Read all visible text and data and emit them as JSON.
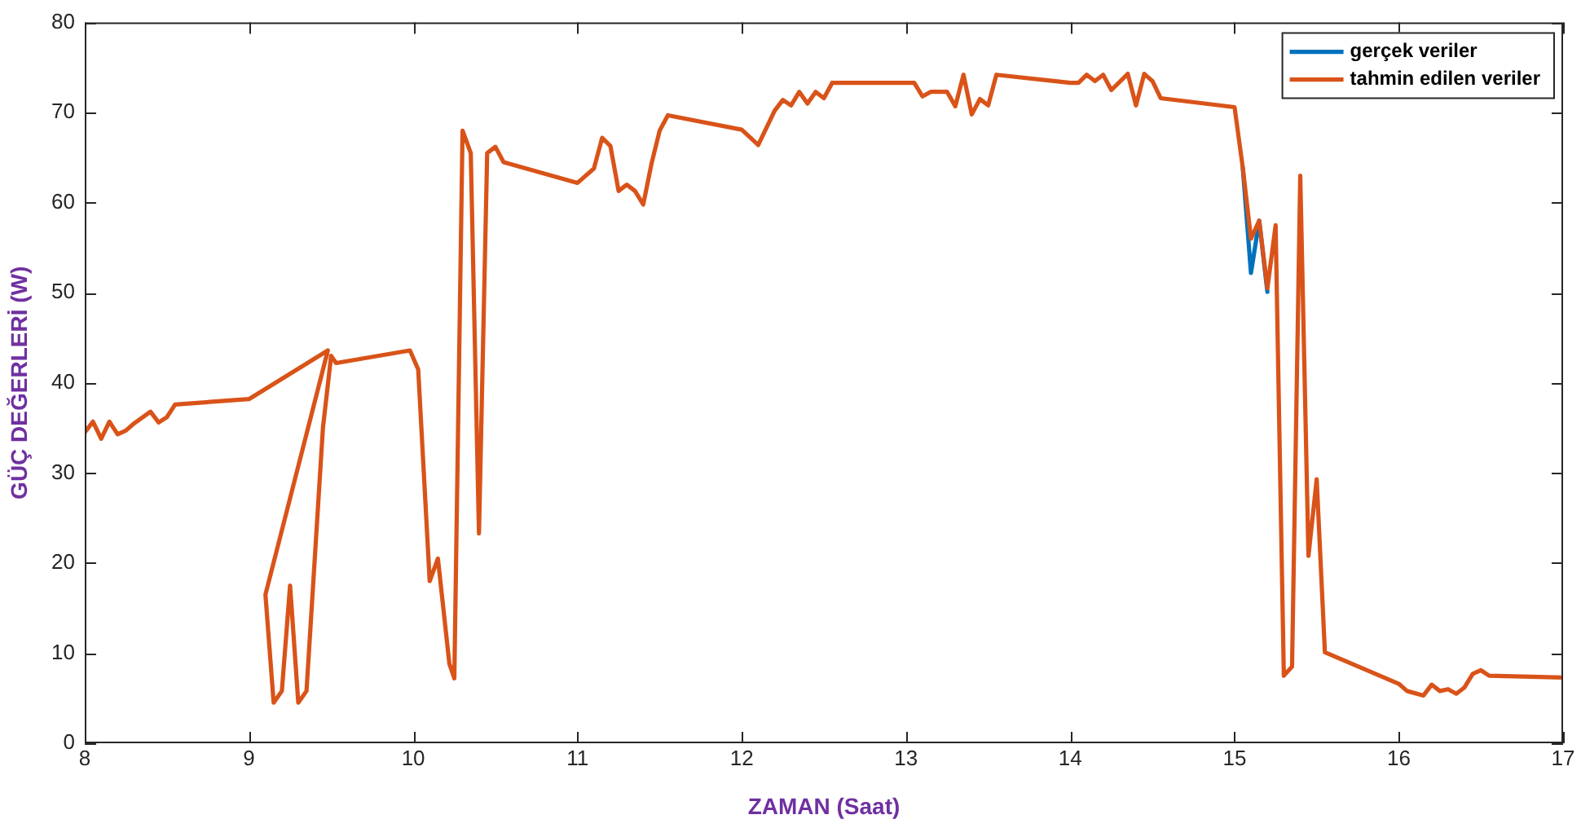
{
  "chart_data": {
    "type": "line",
    "xlabel": "ZAMAN (Saat)",
    "ylabel": "GÜÇ DEĞERLERİ (W)",
    "xlim": [
      8,
      17
    ],
    "ylim": [
      0,
      80
    ],
    "xticks": [
      8,
      9,
      10,
      11,
      12,
      13,
      14,
      15,
      16,
      17
    ],
    "yticks": [
      0,
      10,
      20,
      30,
      40,
      50,
      60,
      70,
      80
    ],
    "grid": false,
    "legend": "top right",
    "marker": "none",
    "line_style": "solid",
    "x": [
      8.0,
      8.05,
      8.1,
      8.15,
      8.2,
      8.25,
      8.3,
      8.4,
      8.45,
      8.5,
      8.55,
      9.0,
      9.48,
      9.1,
      9.15,
      9.2,
      9.25,
      9.3,
      9.35,
      9.45,
      9.5,
      9.53,
      9.98,
      10.03,
      10.1,
      10.15,
      10.22,
      10.25,
      10.3,
      10.35,
      10.4,
      10.45,
      10.5,
      10.55,
      11.0,
      11.1,
      11.15,
      11.2,
      11.25,
      11.3,
      11.35,
      11.4,
      11.45,
      11.5,
      11.55,
      12.0,
      12.1,
      12.2,
      12.25,
      12.3,
      12.35,
      12.4,
      12.45,
      12.5,
      12.55,
      13.05,
      13.1,
      13.15,
      13.25,
      13.3,
      13.35,
      13.4,
      13.45,
      13.5,
      13.55,
      14.0,
      14.05,
      14.1,
      14.15,
      14.2,
      14.25,
      14.35,
      14.4,
      14.45,
      14.5,
      14.55,
      15.0,
      15.05,
      15.1,
      15.15,
      15.2,
      15.25,
      15.3,
      15.35,
      15.4,
      15.45,
      15.5,
      15.55,
      16.0,
      16.05,
      16.15,
      16.2,
      16.25,
      16.3,
      16.35,
      16.4,
      16.45,
      16.5,
      16.55,
      17.0
    ],
    "series": [
      {
        "name": "gerçek veriler",
        "color": "#0072bd",
        "values": [
          null,
          null,
          null,
          null,
          null,
          null,
          null,
          null,
          null,
          null,
          null,
          null,
          null,
          null,
          null,
          null,
          null,
          null,
          null,
          null,
          null,
          null,
          null,
          null,
          null,
          null,
          null,
          null,
          null,
          null,
          null,
          null,
          null,
          null,
          null,
          null,
          null,
          null,
          null,
          null,
          null,
          null,
          null,
          null,
          null,
          null,
          null,
          null,
          null,
          null,
          null,
          null,
          null,
          null,
          null,
          null,
          null,
          null,
          null,
          null,
          null,
          null,
          null,
          null,
          null,
          null,
          null,
          null,
          null,
          null,
          null,
          null,
          null,
          null,
          null,
          null,
          null,
          63.9,
          52.2,
          58,
          50.1,
          null,
          null,
          null,
          null,
          null,
          null,
          null,
          null,
          null,
          null,
          null,
          null,
          null,
          null,
          null,
          null,
          null,
          null,
          null
        ]
      },
      {
        "name": "tahmin edilen veriler",
        "color": "#d95319",
        "values": [
          34.5,
          35.7,
          33.8,
          35.7,
          34.3,
          34.7,
          35.5,
          36.8,
          35.6,
          36.2,
          37.6,
          38.2,
          43.6,
          16.5,
          4.5,
          5.8,
          17.5,
          4.5,
          5.8,
          35,
          43,
          42.2,
          43.6,
          41.5,
          18,
          20.5,
          8.8,
          7.2,
          68,
          65.5,
          23.3,
          65.5,
          66.2,
          64.5,
          62.2,
          63.8,
          67.2,
          66.3,
          61.3,
          62,
          61.3,
          59.8,
          64.3,
          68,
          69.7,
          68.1,
          66.4,
          70.2,
          71.4,
          70.8,
          72.3,
          71,
          72.3,
          71.6,
          73.3,
          73.3,
          71.8,
          72.3,
          72.3,
          70.7,
          74.2,
          69.8,
          71.5,
          70.8,
          74.2,
          73.3,
          73.3,
          74.2,
          73.5,
          74.2,
          72.5,
          74.3,
          70.8,
          74.3,
          73.5,
          71.6,
          70.6,
          63.9,
          56,
          58,
          50.5,
          57.5,
          7.5,
          8.5,
          63,
          20.8,
          29.3,
          10.1,
          6.6,
          5.8,
          5.3,
          6.5,
          5.8,
          6,
          5.5,
          6.2,
          7.7,
          8.1,
          7.5,
          7.3
        ]
      }
    ]
  }
}
